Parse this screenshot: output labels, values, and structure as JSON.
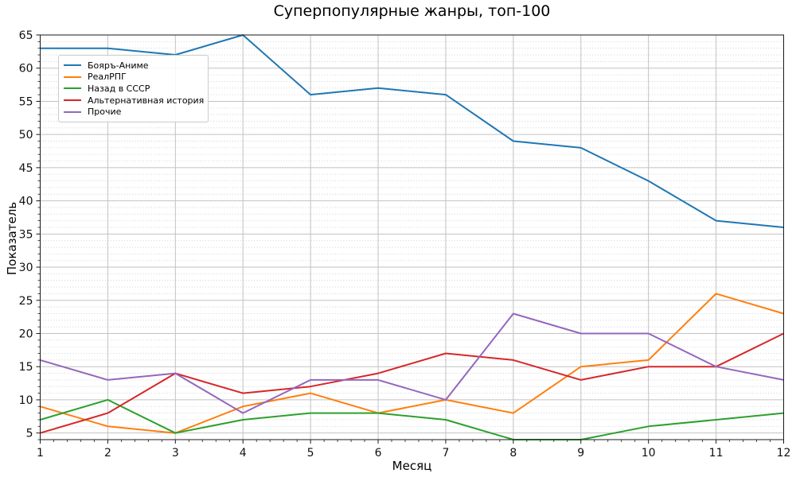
{
  "chart_data": {
    "type": "line",
    "title": "Суперпопулярные жанры, топ-100",
    "xlabel": "Месяц",
    "ylabel": "Показатель",
    "x": [
      1,
      2,
      3,
      4,
      5,
      6,
      7,
      8,
      9,
      10,
      11,
      12
    ],
    "series": [
      {
        "name": "Бояръ-Аниме",
        "color": "#1f77b4",
        "values": [
          63,
          63,
          62,
          65,
          56,
          57,
          56,
          49,
          48,
          43,
          37,
          36
        ]
      },
      {
        "name": "РеалРПГ",
        "color": "#ff7f0e",
        "values": [
          9,
          6,
          5,
          9,
          11,
          8,
          10,
          8,
          15,
          16,
          26,
          23
        ]
      },
      {
        "name": "Назад в СССР",
        "color": "#2ca02c",
        "values": [
          7,
          10,
          5,
          7,
          8,
          8,
          7,
          4,
          4,
          6,
          7,
          8
        ]
      },
      {
        "name": "Альтернативная история",
        "color": "#d62728",
        "values": [
          5,
          8,
          14,
          11,
          12,
          14,
          17,
          16,
          13,
          15,
          15,
          20
        ]
      },
      {
        "name": "Прочие",
        "color": "#9467bd",
        "values": [
          16,
          13,
          14,
          8,
          13,
          13,
          10,
          23,
          20,
          20,
          15,
          13
        ]
      }
    ],
    "xticks": [
      1,
      2,
      3,
      4,
      5,
      6,
      7,
      8,
      9,
      10,
      11,
      12
    ],
    "yticks": [
      5,
      10,
      15,
      20,
      25,
      30,
      35,
      40,
      45,
      50,
      55,
      60,
      65
    ],
    "xlim": [
      1,
      12
    ],
    "ylim": [
      4,
      65
    ],
    "x_minor_step": 0.2,
    "y_minor_step": 1,
    "grid": {
      "major": true,
      "minor_horizontal": true,
      "minor_vertical": false,
      "major_color": "#c2c2c2",
      "minor_color": "#cdcdcd"
    },
    "legend": {
      "position": "upper-left"
    },
    "axis_color": "#1a1a1a"
  }
}
